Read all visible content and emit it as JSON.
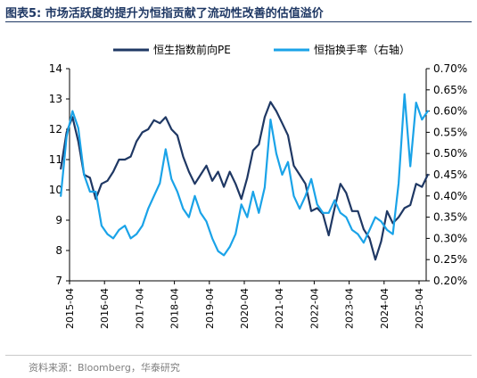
{
  "figure": {
    "title": "图表5:  市场活跃度的提升为恒指贡献了流动性改善的估值溢价",
    "source": "资料来源：Bloomberg，华泰研究"
  },
  "colors": {
    "pe": "#1f3864",
    "turnover": "#1aa3e8"
  },
  "chart_data": {
    "type": "line",
    "title": "",
    "xlabel": "",
    "ylabel": "",
    "x_tick_labels": [
      "2015-04",
      "2016-04",
      "2017-04",
      "2018-04",
      "2019-04",
      "2020-04",
      "2021-04",
      "2022-04",
      "2023-04",
      "2024-04",
      "2025-04"
    ],
    "y_left": {
      "ylim": [
        7,
        14
      ],
      "ticks": [
        "7",
        "8",
        "9",
        "10",
        "11",
        "12",
        "13",
        "14"
      ]
    },
    "y_right": {
      "ylim": [
        0.2,
        0.7
      ],
      "ticks": [
        "0.20%",
        "0.25%",
        "0.30%",
        "0.35%",
        "0.40%",
        "0.45%",
        "0.50%",
        "0.55%",
        "0.60%",
        "0.65%",
        "0.70%"
      ]
    },
    "legend": {
      "placement": "top-center"
    },
    "grid": false,
    "series": [
      {
        "name": "恒生指数前向PE",
        "axis": "left",
        "points": [
          [
            "2015-01",
            10.7
          ],
          [
            "2015-03",
            11.9
          ],
          [
            "2015-05",
            12.4
          ],
          [
            "2015-07",
            11.6
          ],
          [
            "2015-09",
            10.5
          ],
          [
            "2015-11",
            10.4
          ],
          [
            "2016-01",
            9.7
          ],
          [
            "2016-03",
            10.2
          ],
          [
            "2016-05",
            10.3
          ],
          [
            "2016-07",
            10.6
          ],
          [
            "2016-09",
            11.0
          ],
          [
            "2016-11",
            11.0
          ],
          [
            "2017-01",
            11.1
          ],
          [
            "2017-03",
            11.6
          ],
          [
            "2017-05",
            11.9
          ],
          [
            "2017-07",
            12.0
          ],
          [
            "2017-09",
            12.3
          ],
          [
            "2017-11",
            12.2
          ],
          [
            "2018-01",
            12.4
          ],
          [
            "2018-03",
            12.0
          ],
          [
            "2018-05",
            11.8
          ],
          [
            "2018-07",
            11.1
          ],
          [
            "2018-09",
            10.6
          ],
          [
            "2018-11",
            10.2
          ],
          [
            "2019-01",
            10.5
          ],
          [
            "2019-03",
            10.8
          ],
          [
            "2019-05",
            10.3
          ],
          [
            "2019-07",
            10.6
          ],
          [
            "2019-09",
            10.1
          ],
          [
            "2019-11",
            10.6
          ],
          [
            "2020-01",
            10.2
          ],
          [
            "2020-03",
            9.7
          ],
          [
            "2020-05",
            10.4
          ],
          [
            "2020-07",
            11.3
          ],
          [
            "2020-09",
            11.5
          ],
          [
            "2020-11",
            12.4
          ],
          [
            "2021-01",
            12.9
          ],
          [
            "2021-03",
            12.6
          ],
          [
            "2021-05",
            12.2
          ],
          [
            "2021-07",
            11.8
          ],
          [
            "2021-09",
            10.8
          ],
          [
            "2021-11",
            10.5
          ],
          [
            "2022-01",
            10.2
          ],
          [
            "2022-03",
            9.3
          ],
          [
            "2022-05",
            9.4
          ],
          [
            "2022-07",
            9.2
          ],
          [
            "2022-09",
            8.5
          ],
          [
            "2022-11",
            9.4
          ],
          [
            "2023-01",
            10.2
          ],
          [
            "2023-03",
            9.9
          ],
          [
            "2023-05",
            9.3
          ],
          [
            "2023-07",
            9.3
          ],
          [
            "2023-09",
            8.7
          ],
          [
            "2023-11",
            8.4
          ],
          [
            "2024-01",
            7.7
          ],
          [
            "2024-03",
            8.3
          ],
          [
            "2024-05",
            9.3
          ],
          [
            "2024-07",
            8.9
          ],
          [
            "2024-09",
            9.1
          ],
          [
            "2024-11",
            9.4
          ],
          [
            "2025-01",
            9.5
          ],
          [
            "2025-03",
            10.2
          ],
          [
            "2025-05",
            10.1
          ],
          [
            "2025-07",
            10.5
          ]
        ]
      },
      {
        "name": "恒指换手率（右轴）",
        "axis": "right",
        "points": [
          [
            "2015-01",
            0.4
          ],
          [
            "2015-03",
            0.54
          ],
          [
            "2015-05",
            0.6
          ],
          [
            "2015-07",
            0.56
          ],
          [
            "2015-09",
            0.45
          ],
          [
            "2015-11",
            0.41
          ],
          [
            "2016-01",
            0.41
          ],
          [
            "2016-03",
            0.33
          ],
          [
            "2016-05",
            0.31
          ],
          [
            "2016-07",
            0.3
          ],
          [
            "2016-09",
            0.32
          ],
          [
            "2016-11",
            0.33
          ],
          [
            "2017-01",
            0.3
          ],
          [
            "2017-03",
            0.31
          ],
          [
            "2017-05",
            0.33
          ],
          [
            "2017-07",
            0.37
          ],
          [
            "2017-09",
            0.4
          ],
          [
            "2017-11",
            0.43
          ],
          [
            "2018-01",
            0.51
          ],
          [
            "2018-03",
            0.44
          ],
          [
            "2018-05",
            0.41
          ],
          [
            "2018-07",
            0.37
          ],
          [
            "2018-09",
            0.35
          ],
          [
            "2018-11",
            0.4
          ],
          [
            "2019-01",
            0.36
          ],
          [
            "2019-03",
            0.34
          ],
          [
            "2019-05",
            0.3
          ],
          [
            "2019-07",
            0.27
          ],
          [
            "2019-09",
            0.26
          ],
          [
            "2019-11",
            0.28
          ],
          [
            "2020-01",
            0.31
          ],
          [
            "2020-03",
            0.38
          ],
          [
            "2020-05",
            0.35
          ],
          [
            "2020-07",
            0.41
          ],
          [
            "2020-09",
            0.36
          ],
          [
            "2020-11",
            0.42
          ],
          [
            "2021-01",
            0.58
          ],
          [
            "2021-03",
            0.5
          ],
          [
            "2021-05",
            0.45
          ],
          [
            "2021-07",
            0.48
          ],
          [
            "2021-09",
            0.4
          ],
          [
            "2021-11",
            0.37
          ],
          [
            "2022-01",
            0.4
          ],
          [
            "2022-03",
            0.44
          ],
          [
            "2022-05",
            0.38
          ],
          [
            "2022-07",
            0.36
          ],
          [
            "2022-09",
            0.36
          ],
          [
            "2022-11",
            0.39
          ],
          [
            "2023-01",
            0.36
          ],
          [
            "2023-03",
            0.35
          ],
          [
            "2023-05",
            0.32
          ],
          [
            "2023-07",
            0.31
          ],
          [
            "2023-09",
            0.29
          ],
          [
            "2023-11",
            0.32
          ],
          [
            "2024-01",
            0.35
          ],
          [
            "2024-03",
            0.34
          ],
          [
            "2024-05",
            0.32
          ],
          [
            "2024-07",
            0.31
          ],
          [
            "2024-09",
            0.43
          ],
          [
            "2024-11",
            0.64
          ],
          [
            "2025-01",
            0.47
          ],
          [
            "2025-03",
            0.62
          ],
          [
            "2025-05",
            0.58
          ],
          [
            "2025-07",
            0.6
          ]
        ]
      }
    ]
  }
}
